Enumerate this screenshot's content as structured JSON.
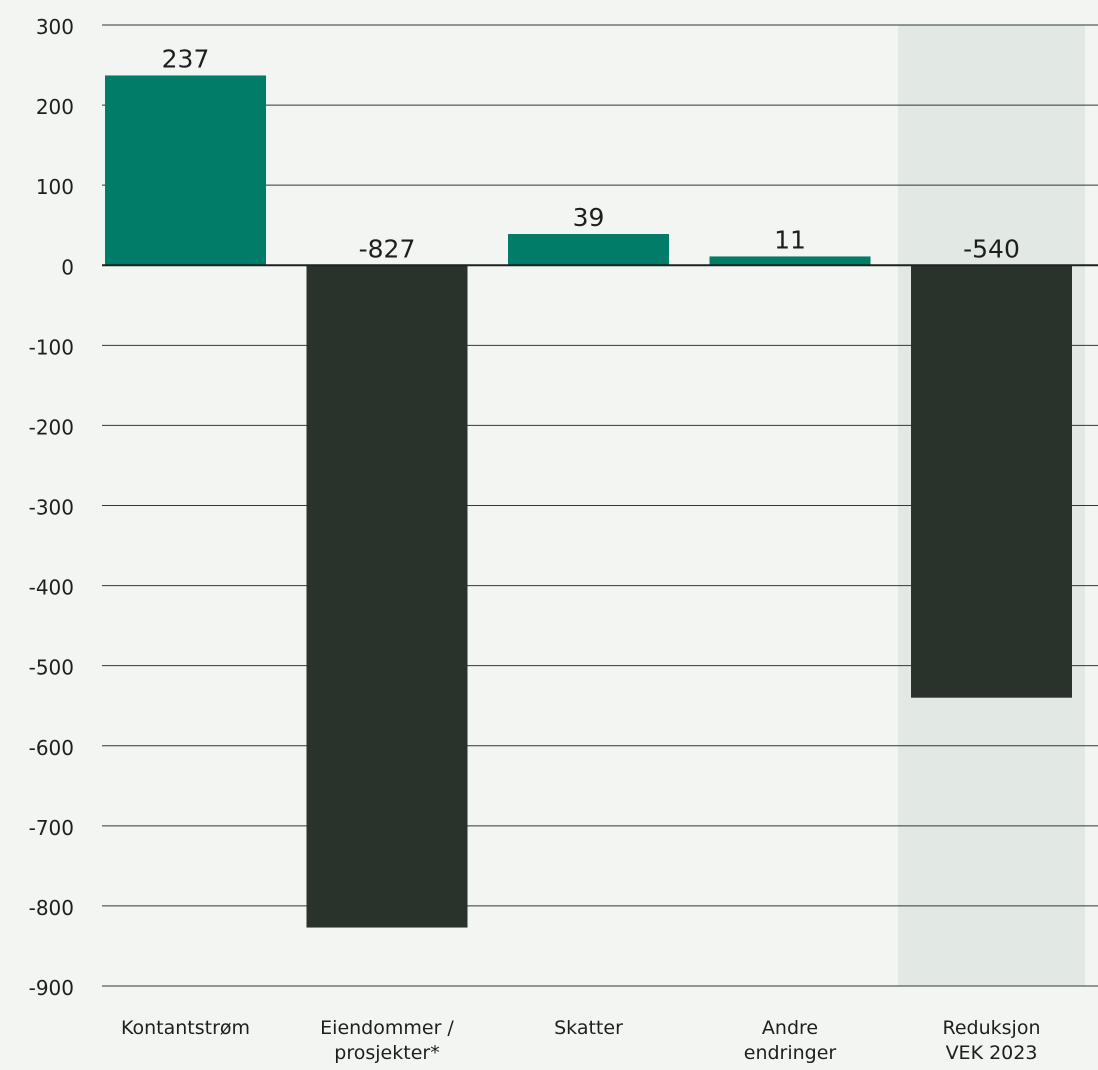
{
  "chart_data": {
    "type": "bar",
    "categories": [
      "Kontantstrøm",
      "Eiendommer / prosjekter*",
      "Skatter",
      "Andre endringer",
      "Reduksjon VEK 2023"
    ],
    "category_lines": [
      [
        "Kontantstrøm"
      ],
      [
        "Eiendommer /",
        "prosjekter*"
      ],
      [
        "Skatter"
      ],
      [
        "Andre",
        "endringer"
      ],
      [
        "Reduksjon",
        "VEK 2023"
      ]
    ],
    "values": [
      237,
      -827,
      39,
      11,
      -540
    ],
    "value_labels": [
      "237",
      "-827",
      "39",
      "11",
      "-540"
    ],
    "ylim": [
      -900,
      300
    ],
    "yticks": [
      300,
      200,
      100,
      0,
      -100,
      -200,
      -300,
      -400,
      -500,
      -600,
      -700,
      -800,
      -900
    ],
    "ytick_labels": [
      "300",
      "200",
      "100",
      "0",
      "-100",
      "-200",
      "-300",
      "-400",
      "-500",
      "-600",
      "-700",
      "-800",
      "-900"
    ],
    "highlighted_category": "Reduksjon VEK 2023",
    "grid": true,
    "title": "",
    "xlabel": "",
    "ylabel": ""
  },
  "colors": {
    "background": "#f3f5f3",
    "positive_bar": "#007c69",
    "negative_bar": "#29332b",
    "highlight_band": "#e2e9e4",
    "grid": "#2d3a33",
    "text": "#1e1e1e"
  }
}
